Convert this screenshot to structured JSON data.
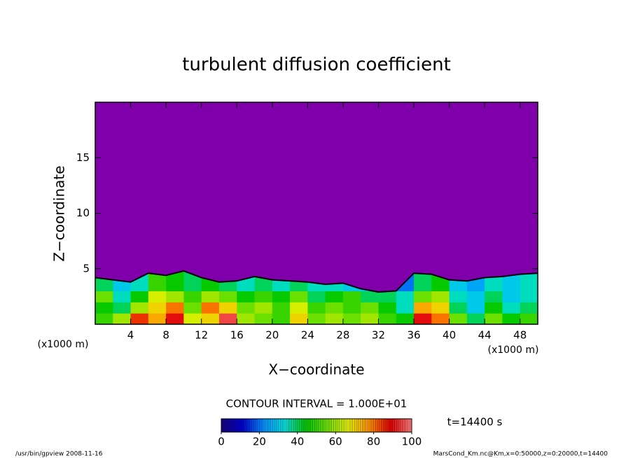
{
  "chart_data": {
    "type": "contour",
    "title": "turbulent diffusion coefficient",
    "x_label": "X−coordinate",
    "y_label": "Z−coordinate",
    "x_unit": "(x1000 m)",
    "y_unit": "(x1000 m)",
    "xlim": [
      0,
      50
    ],
    "ylim": [
      0,
      20
    ],
    "xticks": [
      4,
      8,
      12,
      16,
      20,
      24,
      28,
      32,
      36,
      40,
      44,
      48
    ],
    "yticks": [
      5,
      10,
      15
    ],
    "background_color": "#7f00aa",
    "layer_top": {
      "x": [
        0,
        2,
        4,
        6,
        8,
        10,
        12,
        14,
        16,
        18,
        20,
        22,
        24,
        26,
        28,
        30,
        32,
        34,
        36,
        38,
        40,
        42,
        44,
        46,
        48,
        50
      ],
      "z": [
        4.2,
        4.0,
        3.8,
        4.6,
        4.4,
        4.8,
        4.2,
        3.8,
        3.9,
        4.3,
        4.0,
        3.9,
        3.8,
        3.6,
        3.7,
        3.2,
        2.9,
        3.0,
        4.6,
        4.5,
        4.0,
        3.9,
        4.2,
        4.3,
        4.5,
        4.6
      ]
    },
    "field": {
      "x": [
        1,
        3,
        5,
        7,
        9,
        11,
        13,
        15,
        17,
        19,
        21,
        23,
        25,
        27,
        29,
        31,
        33,
        35,
        37,
        39,
        41,
        43,
        45,
        47,
        49
      ],
      "z": [
        0.5,
        1.5,
        2.5,
        3.5
      ],
      "values": [
        [
          50,
          60,
          85,
          75,
          90,
          65,
          70,
          95,
          60,
          55,
          50,
          70,
          55,
          60,
          55,
          60,
          50,
          45,
          90,
          80,
          55,
          40,
          55,
          45,
          50
        ],
        [
          45,
          40,
          60,
          70,
          80,
          55,
          80,
          70,
          55,
          60,
          50,
          65,
          50,
          55,
          50,
          55,
          45,
          35,
          75,
          70,
          40,
          30,
          45,
          35,
          40
        ],
        [
          55,
          35,
          45,
          65,
          60,
          50,
          60,
          55,
          45,
          50,
          45,
          55,
          40,
          45,
          50,
          40,
          40,
          35,
          55,
          60,
          35,
          30,
          40,
          30,
          35
        ],
        [
          40,
          30,
          35,
          50,
          45,
          40,
          45,
          40,
          35,
          40,
          35,
          40,
          35,
          35,
          30,
          30,
          25,
          20,
          40,
          45,
          30,
          25,
          35,
          30,
          35
        ]
      ]
    },
    "contour_interval": "CONTOUR INTERVAL = 1.000E+01",
    "colorbar": {
      "lim": [
        0,
        100
      ],
      "ticks": [
        0,
        20,
        40,
        60,
        80,
        100
      ],
      "colormap": [
        "#1a0080",
        "#0000d0",
        "#0090ff",
        "#00e0e0",
        "#00c800",
        "#70e000",
        "#e8f000",
        "#ff9000",
        "#e00000",
        "#ff8080"
      ]
    },
    "time_label": "t=14400 s",
    "footer_left": "/usr/bin/gpview  2008-11-16",
    "footer_right": "MarsCond_Km.nc@Km,x=0:50000,z=0:20000,t=14400"
  }
}
